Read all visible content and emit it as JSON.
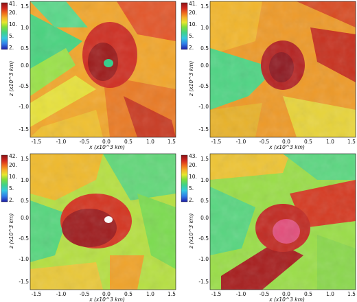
{
  "panels": [
    {
      "colorbar_max_label": "41.",
      "colorbar_ticks": [
        "20.",
        "10.",
        "5.",
        "2."
      ],
      "y_ticks": [
        "1.5",
        "1.0",
        "0.5",
        "0.0",
        "-0.5",
        "-1.0",
        "-1.5"
      ],
      "x_ticks": [
        "-1.5",
        "-1.0",
        "-0.5",
        "0.0",
        "0.5",
        "1.0",
        "1.5"
      ],
      "xlabel": "x (x10^3 km)",
      "ylabel": "z (x10^3 km)"
    },
    {
      "colorbar_max_label": "41.",
      "colorbar_ticks": [
        "20.",
        "10.",
        "5.",
        "2."
      ],
      "y_ticks": [
        "1.5",
        "1.0",
        "0.5",
        "0.0",
        "-0.5",
        "-1.0",
        "-1.5"
      ],
      "x_ticks": [
        "-1.5",
        "-1.0",
        "-0.5",
        "0.0",
        "0.5",
        "1.0",
        "1.5"
      ],
      "xlabel": "x (x10^3 km)",
      "ylabel": "z (x10^3 km)"
    },
    {
      "colorbar_max_label": "42.",
      "colorbar_ticks": [
        "20.",
        "10.",
        "5.",
        "2."
      ],
      "y_ticks": [
        "1.5",
        "1.0",
        "0.5",
        "0.0",
        "-0.5",
        "-1.0",
        "-1.5"
      ],
      "x_ticks": [
        "-1.5",
        "-1.0",
        "-0.5",
        "0.0",
        "0.5",
        "1.0",
        "1.5"
      ],
      "xlabel": "x (x10^3 km)",
      "ylabel": "z (x10^3 km)"
    },
    {
      "colorbar_max_label": "43.",
      "colorbar_ticks": [
        "20.",
        "10.",
        "5.",
        "2."
      ],
      "y_ticks": [
        "1.5",
        "1.0",
        "0.5",
        "0.0",
        "-0.5",
        "-1.0",
        "-1.5"
      ],
      "x_ticks": [
        "-1.5",
        "-1.0",
        "-0.5",
        "0.0",
        "0.5",
        "1.0",
        "1.5"
      ],
      "xlabel": "x (x10^3 km)",
      "ylabel": "z (x10^3 km)"
    }
  ],
  "colormap": [
    "#1e1ea8",
    "#2f7ee8",
    "#36c8e0",
    "#3ed28a",
    "#7ede3a",
    "#e6e62e",
    "#f5b22a",
    "#ef6a1c",
    "#d2281e",
    "#8a1216"
  ]
}
